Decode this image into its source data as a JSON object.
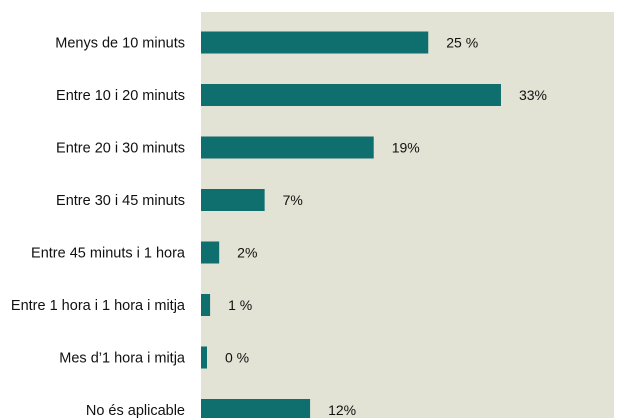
{
  "chart_data": {
    "type": "bar",
    "orientation": "horizontal",
    "categories": [
      "Menys de 10 minuts",
      "Entre 10 i 20 minuts",
      "Entre 20 i 30 minuts",
      "Entre 30 i 45 minuts",
      "Entre 45 minuts i 1 hora",
      "Entre 1 hora i 1 hora i mitja",
      "Mes d’1 hora i mitja",
      "No és aplicable"
    ],
    "values": [
      25,
      33,
      19,
      7,
      2,
      1,
      0,
      12
    ],
    "value_labels": [
      "25 %",
      "33%",
      "19%",
      "7%",
      "2%",
      "1 %",
      "0 %",
      "12%"
    ],
    "title": "",
    "xlabel": "",
    "ylabel": "",
    "xlim": [
      0,
      36
    ],
    "grid": false,
    "legend": "none",
    "colors": {
      "bar": "#0f6e6e",
      "plot_background": "#e2e3d4"
    }
  }
}
